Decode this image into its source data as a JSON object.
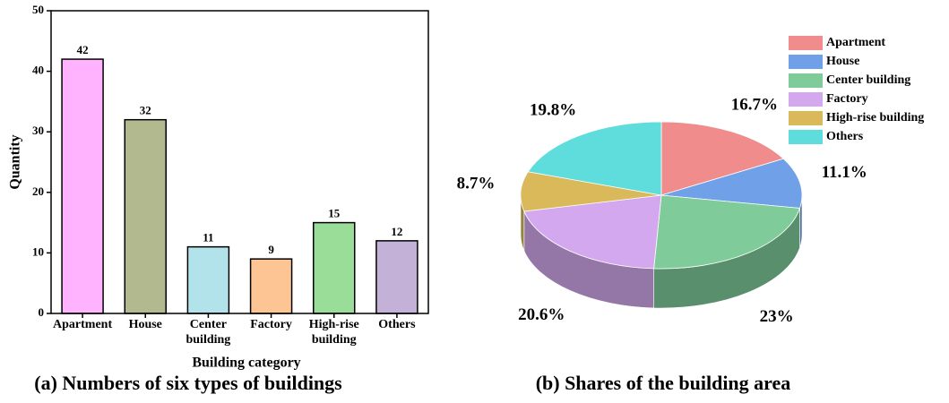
{
  "chart_data": [
    {
      "type": "bar",
      "caption": "(a) Numbers of six types of buildings",
      "x_label": "Building category",
      "y_label": "Quantity",
      "categories": [
        "Apartment",
        "House",
        "Center building",
        "Factory",
        "High-rise building",
        "Others"
      ],
      "values": [
        42,
        32,
        11,
        9,
        15,
        12
      ],
      "colors": [
        "#ffb3ff",
        "#b3b98f",
        "#b3e3ea",
        "#fdc594",
        "#99dd99",
        "#c3b1d7"
      ],
      "ylim": [
        0,
        50
      ],
      "yticks": [
        0,
        10,
        20,
        30,
        40,
        50
      ]
    },
    {
      "type": "pie3d",
      "caption": "(b) Shares of the building area",
      "categories": [
        "Apartment",
        "House",
        "Center building",
        "Factory",
        "High-rise building",
        "Others"
      ],
      "values": [
        16.7,
        11.1,
        23,
        20.6,
        8.7,
        19.8
      ],
      "value_labels": [
        "16.7%",
        "11.1%",
        "23%",
        "20.6%",
        "8.7%",
        "19.8%"
      ],
      "colors": [
        "#f08c8c",
        "#6fa0e8",
        "#7fcc9a",
        "#d3a8ee",
        "#d9b95a",
        "#5fdcdc"
      ],
      "legend": "top-right"
    }
  ]
}
